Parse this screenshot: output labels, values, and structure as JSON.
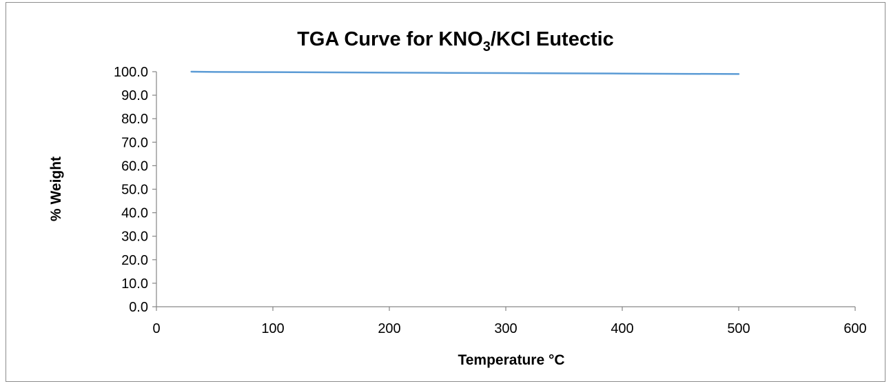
{
  "chart_data": {
    "type": "line",
    "title": {
      "prefix": "TGA Curve for KNO",
      "subscript": "3",
      "suffix": "/KCl Eutectic"
    },
    "xlabel": "Temperature °C",
    "ylabel": "% Weight",
    "xlim": [
      0,
      600
    ],
    "ylim": [
      0,
      100
    ],
    "x_ticks": [
      0,
      100,
      200,
      300,
      400,
      500,
      600
    ],
    "y_ticks": [
      0,
      10,
      20,
      30,
      40,
      50,
      60,
      70,
      80,
      90,
      100
    ],
    "y_tick_decimals": 1,
    "gridlines": false,
    "legend": "none",
    "series": [
      {
        "color": "#5b9bd5",
        "x": [
          30,
          50,
          100,
          150,
          200,
          250,
          300,
          350,
          400,
          450,
          500
        ],
        "y": [
          100.0,
          99.9,
          99.8,
          99.7,
          99.6,
          99.5,
          99.4,
          99.3,
          99.2,
          99.1,
          99.0
        ]
      }
    ]
  }
}
